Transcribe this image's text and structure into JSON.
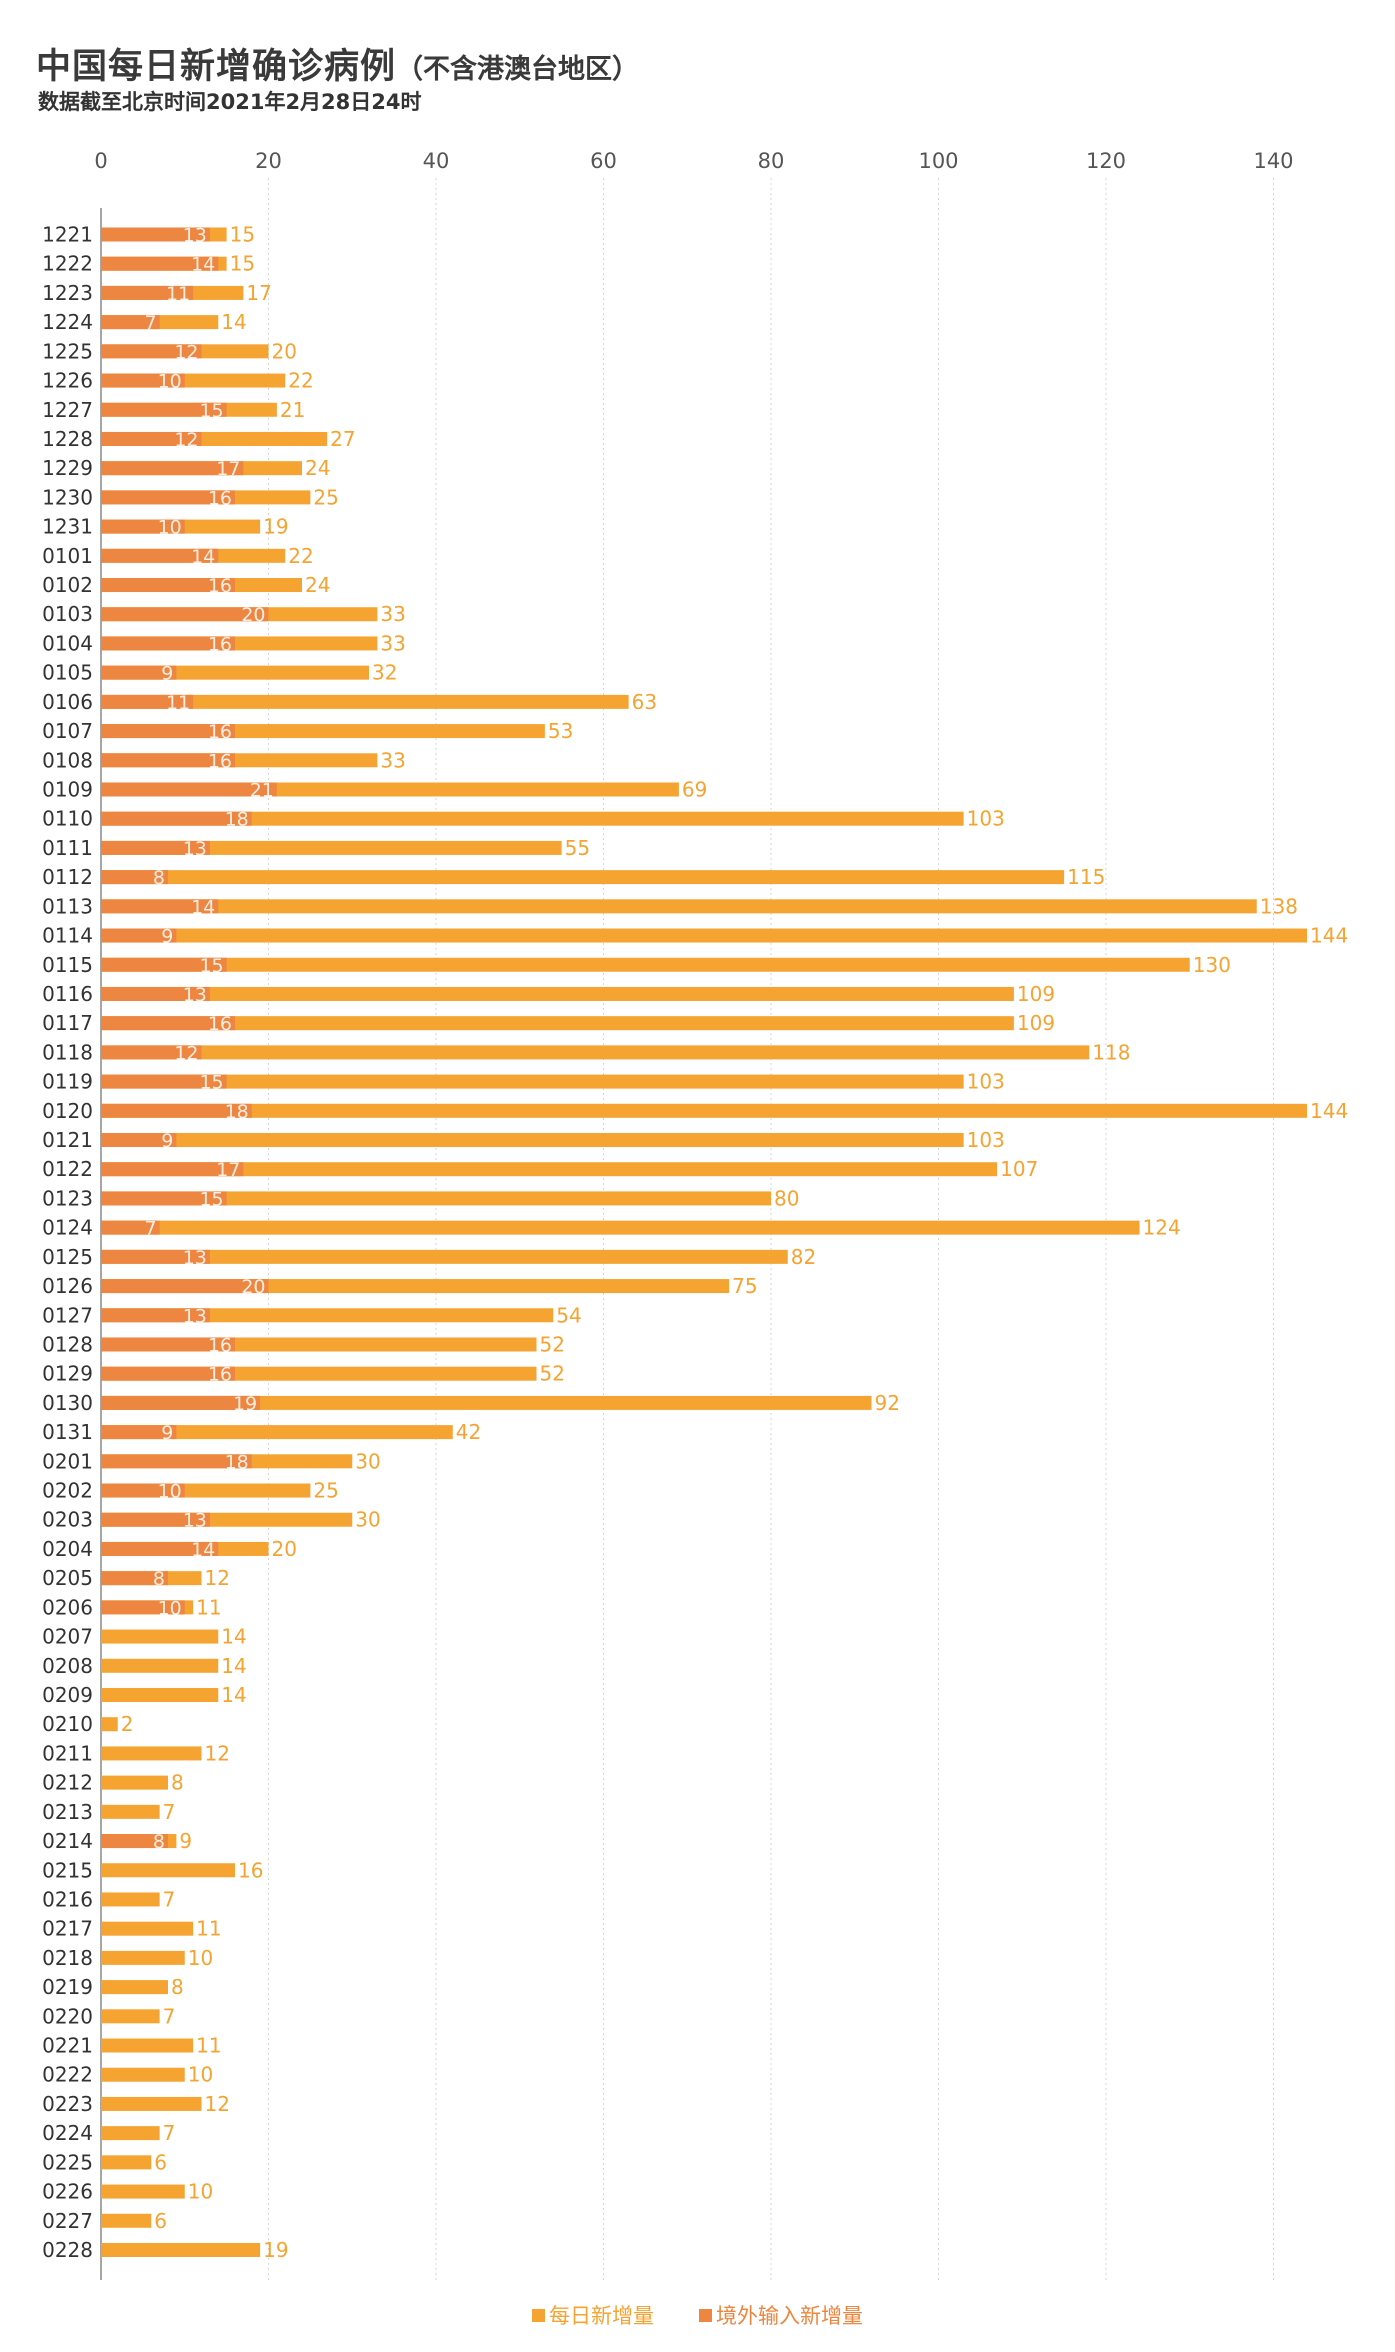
{
  "header": {
    "title": "中国每日新增确诊病例",
    "title_note": "（不含港澳台地区）",
    "subtitle": "数据截至北京时间2021年2月28日24时"
  },
  "colors": {
    "total": "#F5A331",
    "imported": "#EC8640",
    "grid": "#d5d5d5",
    "axis": "#555555"
  },
  "legend": {
    "total_label": "每日新增量",
    "imported_label": "境外输入新增量"
  },
  "chart_data": {
    "type": "bar",
    "orientation": "horizontal",
    "xlim": [
      0,
      150
    ],
    "x_ticks": [
      0,
      20,
      40,
      60,
      80,
      100,
      120,
      140
    ],
    "grid": true,
    "legend_position": "bottom",
    "categories": [
      "1221",
      "1222",
      "1223",
      "1224",
      "1225",
      "1226",
      "1227",
      "1228",
      "1229",
      "1230",
      "1231",
      "0101",
      "0102",
      "0103",
      "0104",
      "0105",
      "0106",
      "0107",
      "0108",
      "0109",
      "0110",
      "0111",
      "0112",
      "0113",
      "0114",
      "0115",
      "0116",
      "0117",
      "0118",
      "0119",
      "0120",
      "0121",
      "0122",
      "0123",
      "0124",
      "0125",
      "0126",
      "0127",
      "0128",
      "0129",
      "0130",
      "0131",
      "0201",
      "0202",
      "0203",
      "0204",
      "0205",
      "0206",
      "0207",
      "0208",
      "0209",
      "0210",
      "0211",
      "0212",
      "0213",
      "0214",
      "0215",
      "0216",
      "0217",
      "0218",
      "0219",
      "0220",
      "0221",
      "0222",
      "0223",
      "0224",
      "0225",
      "0226",
      "0227",
      "0228"
    ],
    "series": [
      {
        "name": "每日新增量",
        "values": [
          15,
          15,
          17,
          14,
          20,
          22,
          21,
          27,
          24,
          25,
          19,
          22,
          24,
          33,
          33,
          32,
          63,
          53,
          33,
          69,
          103,
          55,
          115,
          138,
          144,
          130,
          109,
          109,
          118,
          103,
          144,
          103,
          107,
          80,
          124,
          82,
          75,
          54,
          52,
          52,
          92,
          42,
          30,
          25,
          30,
          20,
          12,
          11,
          14,
          14,
          14,
          2,
          12,
          8,
          7,
          9,
          16,
          7,
          11,
          10,
          8,
          7,
          11,
          10,
          12,
          7,
          6,
          10,
          6,
          19
        ]
      },
      {
        "name": "境外输入新增量",
        "values": [
          13,
          14,
          11,
          7,
          12,
          10,
          15,
          12,
          17,
          16,
          10,
          14,
          16,
          20,
          16,
          9,
          11,
          16,
          16,
          21,
          18,
          13,
          8,
          14,
          9,
          15,
          13,
          16,
          12,
          15,
          18,
          9,
          17,
          15,
          7,
          13,
          20,
          13,
          16,
          16,
          19,
          9,
          18,
          10,
          13,
          14,
          8,
          10,
          0,
          0,
          0,
          0,
          0,
          0,
          0,
          8,
          0,
          0,
          0,
          0,
          0,
          0,
          0,
          0,
          0,
          0,
          0,
          0,
          0,
          0
        ]
      }
    ]
  }
}
